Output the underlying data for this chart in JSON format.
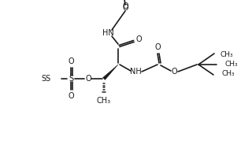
{
  "bg_color": "#ffffff",
  "line_color": "#1a1a1a",
  "lw": 1.2,
  "fs": 7.0,
  "figsize": [
    3.2,
    1.88
  ],
  "dpi": 100,
  "xlim": [
    0,
    320
  ],
  "ylim": [
    0,
    188
  ]
}
